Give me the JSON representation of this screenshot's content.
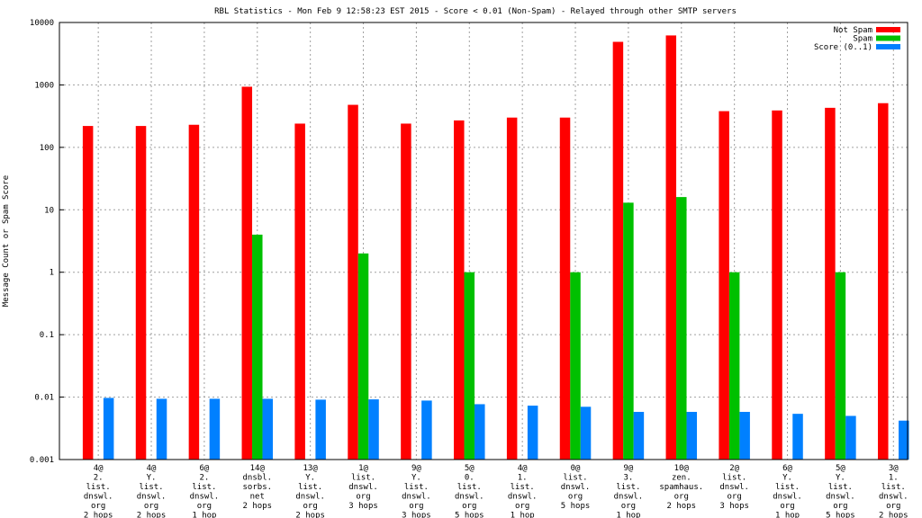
{
  "chart_data": {
    "type": "bar",
    "title": "RBL Statistics - Mon Feb  9 12:58:23 EST 2015 - Score < 0.01 (Non-Spam) - Relayed through other SMTP servers",
    "xlabel": "",
    "ylabel": "Message Count or Spam Score",
    "yscale": "log",
    "ylim": [
      0.001,
      10000
    ],
    "yticks": [
      "0.001",
      "0.01",
      "0.1",
      "1",
      "10",
      "100",
      "1000",
      "10000"
    ],
    "grid": true,
    "legend_position": "top-right",
    "categories": [
      [
        "4@",
        "2.",
        "list.",
        "dnswl.",
        "org",
        "2 hops"
      ],
      [
        "4@",
        "Y.",
        "list.",
        "dnswl.",
        "org",
        "2 hops"
      ],
      [
        "6@",
        "2.",
        "list.",
        "dnswl.",
        "org",
        "1 hop"
      ],
      [
        "14@",
        "dnsbl.",
        "sorbs.",
        "net",
        "2 hops"
      ],
      [
        "13@",
        "Y.",
        "list.",
        "dnswl.",
        "org",
        "2 hops"
      ],
      [
        "1@",
        "list.",
        "dnswl.",
        "org",
        "3 hops"
      ],
      [
        "9@",
        "Y.",
        "list.",
        "dnswl.",
        "org",
        "3 hops"
      ],
      [
        "5@",
        "0.",
        "list.",
        "dnswl.",
        "org",
        "5 hops"
      ],
      [
        "4@",
        "1.",
        "list.",
        "dnswl.",
        "org",
        "1 hop"
      ],
      [
        "0@",
        "list.",
        "dnswl.",
        "org",
        "5 hops"
      ],
      [
        "9@",
        "3.",
        "list.",
        "dnswl.",
        "org",
        "1 hop"
      ],
      [
        "10@",
        "zen.",
        "spamhaus.",
        "org",
        "2 hops"
      ],
      [
        "2@",
        "list.",
        "dnswl.",
        "org",
        "3 hops"
      ],
      [
        "6@",
        "Y.",
        "list.",
        "dnswl.",
        "org",
        "1 hop"
      ],
      [
        "5@",
        "Y.",
        "list.",
        "dnswl.",
        "org",
        "5 hops"
      ],
      [
        "3@",
        "1.",
        "list.",
        "dnswl.",
        "org",
        "2 hops"
      ]
    ],
    "series": [
      {
        "name": "Not Spam",
        "color": "#ff0000",
        "values": [
          220,
          220,
          230,
          935,
          240,
          480,
          240,
          270,
          300,
          300,
          4900,
          6200,
          380,
          390,
          430,
          510
        ]
      },
      {
        "name": "Spam",
        "color": "#00c000",
        "values": [
          0,
          0,
          0,
          4,
          0,
          2,
          0,
          1,
          0,
          1,
          13,
          16,
          1,
          0,
          1,
          0
        ]
      },
      {
        "name": "Score (0..1)",
        "color": "#0080ff",
        "values": [
          0.0097,
          0.0094,
          0.0094,
          0.0094,
          0.0091,
          0.0092,
          0.0088,
          0.0077,
          0.0073,
          0.007,
          0.0058,
          0.0058,
          0.0058,
          0.0054,
          0.005,
          0.0042
        ]
      }
    ]
  }
}
